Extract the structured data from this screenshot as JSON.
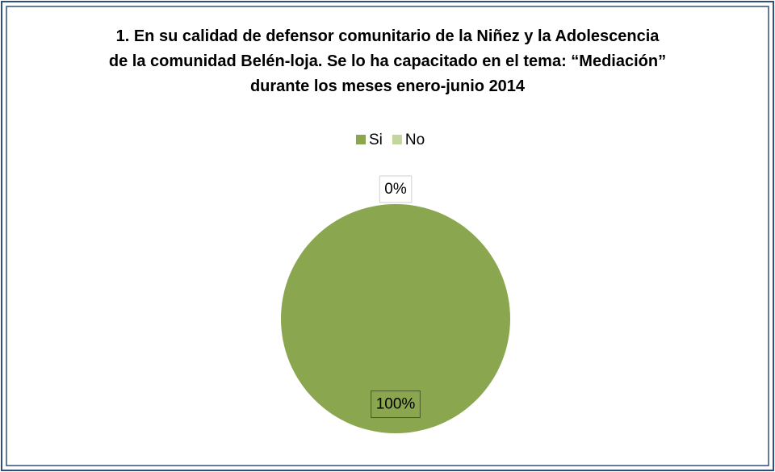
{
  "chart_data": {
    "type": "pie",
    "title": "1. En su calidad de defensor comunitario de la Niñez y la Adolescencia de la comunidad Belén-loja. Se lo ha capacitado en el tema: “Mediación” durante los meses enero-junio 2014",
    "categories": [
      "Si",
      "No"
    ],
    "values": [
      100,
      0
    ],
    "value_labels": [
      "100%",
      "0%"
    ],
    "colors": [
      "#8aa64e",
      "#c3d69b"
    ],
    "legend": "top"
  }
}
